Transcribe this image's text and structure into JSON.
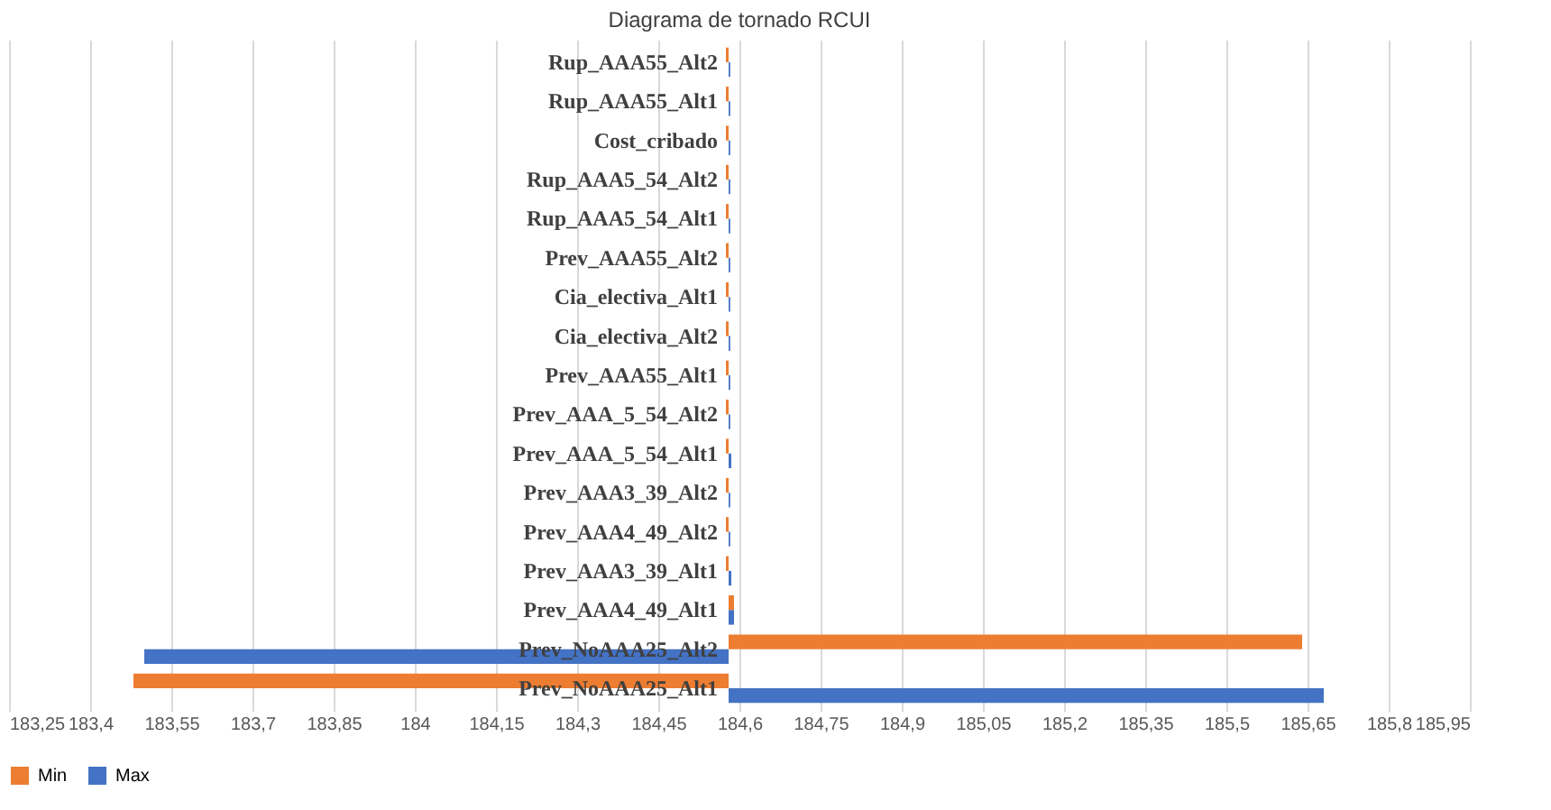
{
  "chart_data": {
    "type": "bar",
    "orientation": "horizontal",
    "title": "Diagrama de tornado RCUI",
    "categories": [
      "Rup_AAA55_Alt2",
      "Rup_AAA55_Alt1",
      "Cost_cribado",
      "Rup_AAA5_54_Alt2",
      "Rup_AAA5_54_Alt1",
      "Prev_AAA55_Alt2",
      "Cia_electiva_Alt1",
      "Cia_electiva_Alt2",
      "Prev_AAA55_Alt1",
      "Prev_AAA_5_54_Alt2",
      "Prev_AAA_5_54_Alt1",
      "Prev_AAA3_39_Alt2",
      "Prev_AAA4_49_Alt2",
      "Prev_AAA3_39_Alt1",
      "Prev_AAA4_49_Alt1",
      "Prev_NoAAA25_Alt2",
      "Prev_NoAAA25_Alt1"
    ],
    "series": [
      {
        "name": "Min",
        "color": "#ed7d31",
        "base": [
          184.58,
          184.58,
          184.58,
          184.58,
          184.58,
          184.58,
          184.58,
          184.58,
          184.58,
          184.58,
          184.58,
          184.58,
          184.58,
          184.58,
          184.58,
          184.58,
          184.58
        ],
        "values": [
          -0.005,
          -0.005,
          -0.005,
          -0.005,
          -0.005,
          -0.005,
          -0.005,
          -0.005,
          -0.005,
          -0.005,
          -0.005,
          -0.005,
          -0.005,
          -0.005,
          0.01,
          1.06,
          -1.1
        ]
      },
      {
        "name": "Max",
        "color": "#4472c4",
        "base": [
          184.58,
          184.58,
          184.58,
          184.58,
          184.58,
          184.58,
          184.58,
          184.58,
          184.58,
          184.58,
          184.58,
          184.58,
          184.58,
          184.58,
          184.58,
          184.58,
          184.58
        ],
        "values": [
          0.003,
          0.003,
          0.003,
          0.003,
          0.003,
          0.003,
          0.003,
          0.003,
          0.003,
          0.003,
          0.005,
          0.003,
          0.003,
          0.005,
          0.01,
          -1.08,
          1.1
        ]
      }
    ],
    "xlim": [
      183.25,
      185.95
    ],
    "xticks": [
      {
        "value": 183.25,
        "label": "183,25"
      },
      {
        "value": 183.4,
        "label": "183,4"
      },
      {
        "value": 183.55,
        "label": "183,55"
      },
      {
        "value": 183.7,
        "label": "183,7"
      },
      {
        "value": 183.85,
        "label": "183,85"
      },
      {
        "value": 184,
        "label": "184"
      },
      {
        "value": 184.15,
        "label": "184,15"
      },
      {
        "value": 184.3,
        "label": "184,3"
      },
      {
        "value": 184.45,
        "label": "184,45"
      },
      {
        "value": 184.6,
        "label": "184,6"
      },
      {
        "value": 184.75,
        "label": "184,75"
      },
      {
        "value": 184.9,
        "label": "184,9"
      },
      {
        "value": 185.05,
        "label": "185,05"
      },
      {
        "value": 185.2,
        "label": "185,2"
      },
      {
        "value": 185.35,
        "label": "185,35"
      },
      {
        "value": 185.5,
        "label": "185,5"
      },
      {
        "value": 185.65,
        "label": "185,65"
      },
      {
        "value": 185.8,
        "label": "185,8"
      },
      {
        "value": 185.95,
        "label": "185,95"
      }
    ],
    "grid": "x",
    "legend": "bottom"
  }
}
